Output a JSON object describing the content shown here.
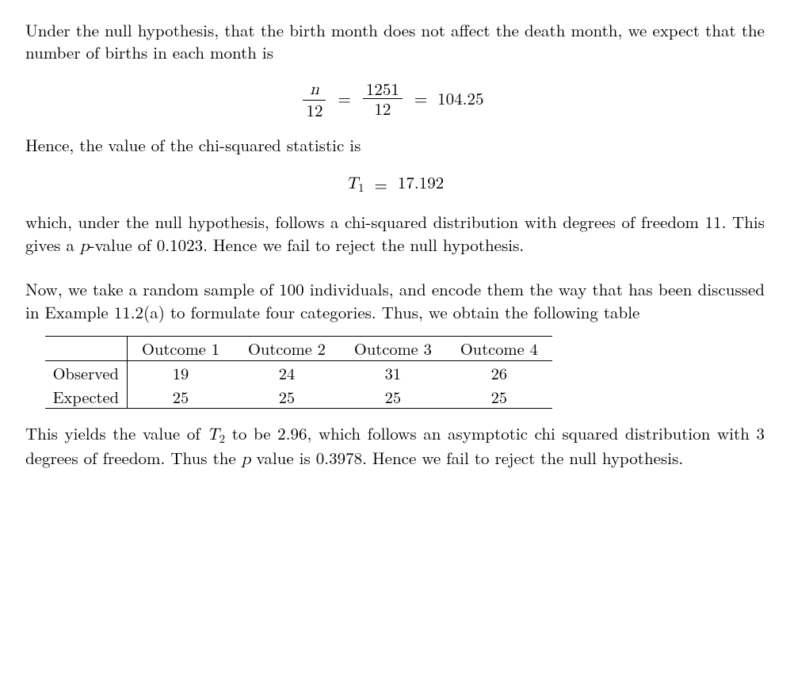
{
  "para1": "Under the null hypothesis, that the birth month does not affect the death month, we expect that the number of births in each month is",
  "eq1": {
    "lhs_num": "n",
    "lhs_den": "12",
    "mid_num": "1251",
    "mid_den": "12",
    "rhs": "104.25"
  },
  "para2": "Hence, the value of the chi-squared statistic is",
  "eq2": {
    "T_var": "T",
    "T_sub": "1",
    "value": "17.192"
  },
  "para3_a": "which, under the null hypothesis, follows a chi-squared distribution with degrees of freedom 11. This gives a ",
  "para3_p": "p",
  "para3_b": "-value of 0.1023. Hence we fail to reject the null hypothesis.",
  "para4": "Now, we take a random sample of 100 individuals, and encode them the way that has been discussed in Example 11.2(a) to formulate four categories. Thus, we obtain the following table",
  "table": {
    "headers": [
      "Outcome 1",
      "Outcome 2",
      "Outcome 3",
      "Outcome 4"
    ],
    "rows": [
      {
        "label": "Observed",
        "cells": [
          "19",
          "24",
          "31",
          "26"
        ]
      },
      {
        "label": "Expected",
        "cells": [
          "25",
          "25",
          "25",
          "25"
        ]
      }
    ]
  },
  "para5_a": "This yields the value of ",
  "para5_T": "T",
  "para5_Tsub": "2",
  "para5_b": " to be 2.96, which follows an asymptotic chi squared distribution with 3 degrees of freedom. Thus the ",
  "para5_p": "p",
  "para5_c": " value is 0.3978. Hence we fail to reject the null hypothesis."
}
